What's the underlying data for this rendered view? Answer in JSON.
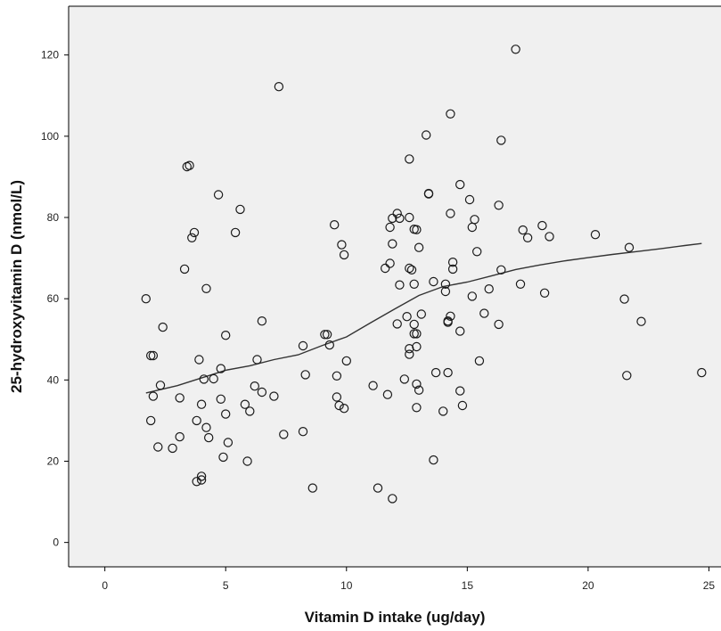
{
  "chart_data": {
    "type": "scatter",
    "title": "",
    "xlabel": "Vitamin D intake (ug/day)",
    "ylabel": "25-hydroxyvitamin D (nmol/L)",
    "xlim": [
      -1.5,
      25.5
    ],
    "ylim": [
      -6,
      132
    ],
    "xticks": [
      0,
      5,
      10,
      15,
      20,
      25
    ],
    "yticks": [
      0,
      20,
      40,
      60,
      80,
      100,
      120
    ],
    "grid": false,
    "colors": {
      "plot_background": "#f0f0f0",
      "marker_stroke": "#1a1a1a",
      "line": "#333333"
    },
    "series": [
      {
        "kind": "points",
        "points": [
          [
            1.7,
            60
          ],
          [
            1.9,
            46
          ],
          [
            2.0,
            46
          ],
          [
            1.9,
            30
          ],
          [
            2.0,
            36
          ],
          [
            2.3,
            38.7
          ],
          [
            2.2,
            23.5
          ],
          [
            2.4,
            53
          ],
          [
            2.8,
            23.2
          ],
          [
            3.1,
            26
          ],
          [
            3.1,
            35.6
          ],
          [
            3.3,
            67.3
          ],
          [
            3.4,
            92.5
          ],
          [
            3.5,
            92.8
          ],
          [
            3.6,
            75
          ],
          [
            3.7,
            76.3
          ],
          [
            3.8,
            30
          ],
          [
            3.9,
            45
          ],
          [
            3.8,
            15
          ],
          [
            4.0,
            15.4
          ],
          [
            4.0,
            16.3
          ],
          [
            4.0,
            34
          ],
          [
            4.1,
            40.2
          ],
          [
            4.2,
            62.5
          ],
          [
            4.2,
            28.3
          ],
          [
            4.3,
            25.8
          ],
          [
            4.5,
            40.3
          ],
          [
            4.7,
            85.6
          ],
          [
            4.8,
            35.3
          ],
          [
            4.8,
            42.8
          ],
          [
            4.9,
            21
          ],
          [
            5.0,
            51
          ],
          [
            5.0,
            31.6
          ],
          [
            5.1,
            24.6
          ],
          [
            5.4,
            76.3
          ],
          [
            5.6,
            82
          ],
          [
            5.8,
            34
          ],
          [
            5.9,
            20
          ],
          [
            6.0,
            32.3
          ],
          [
            6.2,
            38.5
          ],
          [
            6.3,
            45
          ],
          [
            6.5,
            54.5
          ],
          [
            6.5,
            37
          ],
          [
            7.0,
            36
          ],
          [
            7.2,
            112.2
          ],
          [
            7.4,
            26.6
          ],
          [
            8.2,
            48.4
          ],
          [
            8.3,
            41.3
          ],
          [
            8.2,
            27.3
          ],
          [
            8.6,
            13.4
          ],
          [
            9.1,
            51.2
          ],
          [
            9.2,
            51.2
          ],
          [
            9.3,
            48.6
          ],
          [
            9.5,
            78.2
          ],
          [
            9.6,
            35.8
          ],
          [
            9.6,
            41
          ],
          [
            9.7,
            33.7
          ],
          [
            9.8,
            73.3
          ],
          [
            9.9,
            70.8
          ],
          [
            9.9,
            33
          ],
          [
            10.0,
            44.7
          ],
          [
            11.1,
            38.6
          ],
          [
            11.3,
            13.4
          ],
          [
            11.6,
            67.5
          ],
          [
            11.7,
            36.4
          ],
          [
            11.8,
            77.6
          ],
          [
            11.9,
            79.8
          ],
          [
            11.9,
            73.5
          ],
          [
            11.8,
            68.7
          ],
          [
            11.9,
            10.8
          ],
          [
            12.1,
            81
          ],
          [
            12.2,
            79.8
          ],
          [
            12.1,
            53.8
          ],
          [
            12.2,
            63.4
          ],
          [
            12.4,
            40.2
          ],
          [
            12.5,
            55.6
          ],
          [
            12.6,
            67.5
          ],
          [
            12.6,
            94.4
          ],
          [
            12.6,
            80
          ],
          [
            12.6,
            47.7
          ],
          [
            12.6,
            46.3
          ],
          [
            12.7,
            67.1
          ],
          [
            12.8,
            63.6
          ],
          [
            12.8,
            77.1
          ],
          [
            12.8,
            53.7
          ],
          [
            12.8,
            51.4
          ],
          [
            12.9,
            77
          ],
          [
            12.9,
            51.4
          ],
          [
            12.9,
            48.2
          ],
          [
            12.9,
            39
          ],
          [
            12.9,
            33.2
          ],
          [
            13.0,
            72.6
          ],
          [
            13.1,
            56.2
          ],
          [
            13.0,
            37.5
          ],
          [
            13.3,
            100.3
          ],
          [
            13.4,
            85.8
          ],
          [
            13.4,
            85.9
          ],
          [
            13.6,
            20.3
          ],
          [
            13.6,
            64.2
          ],
          [
            13.7,
            41.8
          ],
          [
            14.0,
            32.3
          ],
          [
            14.1,
            61.8
          ],
          [
            14.1,
            63.6
          ],
          [
            14.2,
            54.2
          ],
          [
            14.2,
            54.5
          ],
          [
            14.3,
            105.5
          ],
          [
            14.3,
            55.7
          ],
          [
            14.2,
            41.8
          ],
          [
            14.3,
            81
          ],
          [
            14.4,
            69
          ],
          [
            14.4,
            67.3
          ],
          [
            14.7,
            88.1
          ],
          [
            14.7,
            52
          ],
          [
            14.7,
            37.3
          ],
          [
            14.8,
            33.7
          ],
          [
            15.1,
            84.4
          ],
          [
            15.2,
            77.6
          ],
          [
            15.2,
            60.6
          ],
          [
            15.3,
            79.5
          ],
          [
            15.4,
            71.6
          ],
          [
            15.5,
            44.7
          ],
          [
            15.7,
            56.4
          ],
          [
            15.9,
            62.4
          ],
          [
            16.3,
            53.7
          ],
          [
            16.3,
            83
          ],
          [
            16.4,
            99
          ],
          [
            16.4,
            67.1
          ],
          [
            17.0,
            121.4
          ],
          [
            17.2,
            63.6
          ],
          [
            17.3,
            76.9
          ],
          [
            17.5,
            75
          ],
          [
            18.1,
            78
          ],
          [
            18.2,
            61.4
          ],
          [
            18.4,
            75.3
          ],
          [
            20.3,
            75.8
          ],
          [
            21.5,
            59.9
          ],
          [
            21.6,
            41.1
          ],
          [
            21.7,
            72.6
          ],
          [
            22.2,
            54.4
          ],
          [
            24.7,
            41.8
          ]
        ]
      },
      {
        "kind": "fit-line",
        "points": [
          [
            1.7,
            36.8
          ],
          [
            3,
            38.6
          ],
          [
            4,
            40.5
          ],
          [
            5,
            42.4
          ],
          [
            6,
            43.5
          ],
          [
            7,
            45
          ],
          [
            8,
            46.2
          ],
          [
            9,
            48.5
          ],
          [
            10,
            50.6
          ],
          [
            11,
            54.1
          ],
          [
            12,
            57.5
          ],
          [
            13,
            60.8
          ],
          [
            14,
            63
          ],
          [
            15,
            64.1
          ],
          [
            16,
            65.6
          ],
          [
            17,
            67.2
          ],
          [
            18,
            68.3
          ],
          [
            19,
            69.3
          ],
          [
            20,
            70.1
          ],
          [
            21,
            70.9
          ],
          [
            22,
            71.6
          ],
          [
            23,
            72.3
          ],
          [
            24,
            73.1
          ],
          [
            24.7,
            73.6
          ]
        ]
      }
    ]
  }
}
